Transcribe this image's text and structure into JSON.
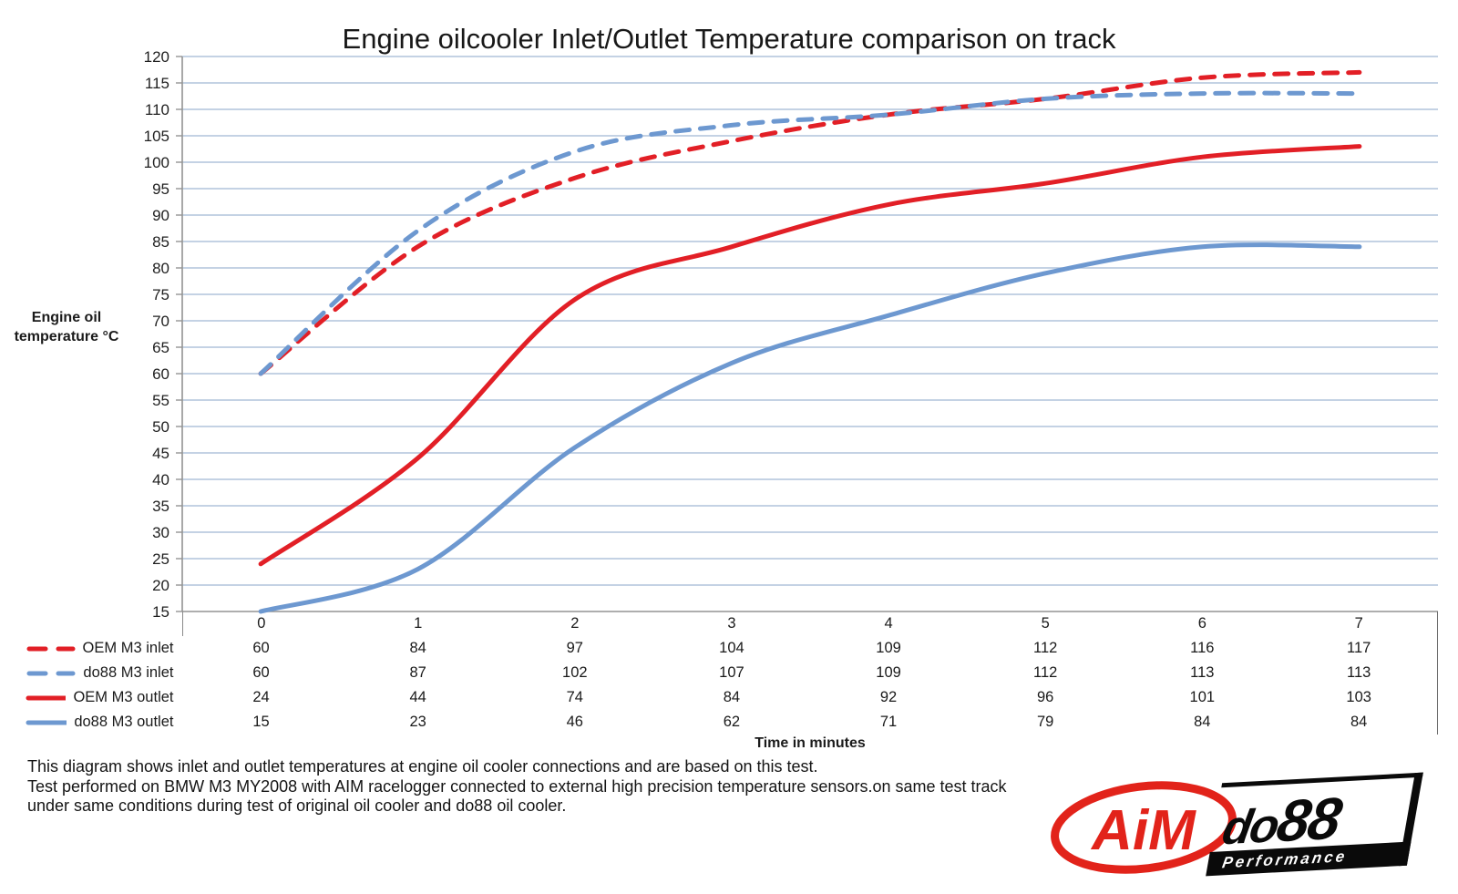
{
  "title": "Engine oilcooler Inlet/Outlet Temperature comparison on track",
  "chart_data": {
    "type": "line",
    "smooth": true,
    "grid": true,
    "x": [
      0,
      1,
      2,
      3,
      4,
      5,
      6,
      7
    ],
    "xlabel": "Time in minutes",
    "ylabel": "Engine oil temperature °C",
    "ylim": [
      15,
      120
    ],
    "ytick_step": 5,
    "legend_position": "table-left",
    "series": [
      {
        "name": "OEM M3 inlet",
        "style": "dashed",
        "color": "#E21F26",
        "values": [
          60,
          84,
          97,
          104,
          109,
          112,
          116,
          117
        ]
      },
      {
        "name": "do88 M3 inlet",
        "style": "dashed",
        "color": "#6D98D0",
        "values": [
          60,
          87,
          102,
          107,
          109,
          112,
          113,
          113
        ]
      },
      {
        "name": "OEM M3 outlet",
        "style": "solid",
        "color": "#E21F26",
        "values": [
          24,
          44,
          74,
          84,
          92,
          96,
          101,
          103
        ]
      },
      {
        "name": "do88 M3 outlet",
        "style": "solid",
        "color": "#6D98D0",
        "values": [
          15,
          23,
          46,
          62,
          71,
          79,
          84,
          84
        ]
      }
    ]
  },
  "footer": {
    "lines": [
      "This diagram shows inlet and outlet temperatures at engine oil cooler connections and are based on this test.",
      "Test performed on BMW M3 MY2008 with AIM racelogger connected to external high precision temperature sensors.on same test track",
      "under same conditions during test of original oil cooler and do88 oil cooler."
    ]
  },
  "logos": {
    "aim": {
      "text": "AiM",
      "color": "#E2231A"
    },
    "do88": {
      "word_do": "do",
      "word_88": "88",
      "subtext": "Performance"
    }
  },
  "colors": {
    "gridline": "#B0C4DC",
    "axis": "#939393",
    "table_border": "#6E6E6E"
  }
}
